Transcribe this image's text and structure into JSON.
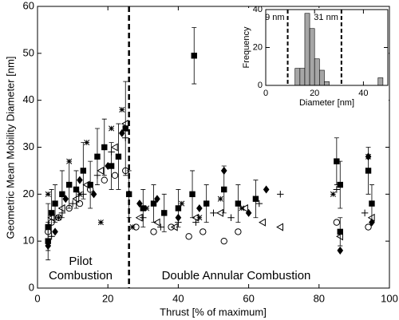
{
  "chart_data": [
    {
      "type": "scatter",
      "x_label": "Thrust [% of maximum]",
      "y_label": "Geometric Mean Mobility Diameter [nm]",
      "annotations": [
        "Pilot",
        "Combustion",
        "Double Annular Combustion"
      ],
      "divider": 26,
      "xlim": [
        0,
        100
      ],
      "ylim": [
        0,
        60
      ],
      "xticks": [
        0,
        20,
        40,
        60,
        80,
        100
      ],
      "yticks": [
        0,
        10,
        20,
        30,
        40,
        50,
        60
      ],
      "series": [
        {
          "marker": "square",
          "color": "#000000",
          "x": [
            3,
            3,
            4,
            5,
            7,
            9,
            11,
            13,
            15,
            17,
            19,
            21,
            23,
            25,
            26,
            30,
            33,
            36,
            40,
            44,
            44.5,
            48,
            53,
            57,
            62,
            85,
            86,
            86,
            94,
            95
          ],
          "values": [
            10,
            13,
            16,
            18,
            20,
            22,
            21,
            25,
            22,
            28,
            30,
            26,
            28,
            34,
            20,
            17,
            18,
            16,
            17,
            20,
            49.5,
            18,
            21,
            18,
            19,
            27,
            22,
            12,
            25,
            18
          ],
          "errors": [
            4,
            5,
            5,
            4,
            5,
            5,
            4,
            6,
            5,
            6,
            6,
            5,
            7,
            10,
            5,
            4,
            4,
            4,
            4,
            5,
            6,
            4,
            5,
            4,
            4,
            5,
            5,
            3,
            5,
            4
          ]
        },
        {
          "marker": "circle",
          "color": "#000000",
          "x": [
            3,
            4,
            6,
            9,
            12,
            15,
            19,
            22,
            25,
            28,
            33,
            38,
            43,
            47,
            53,
            57,
            85,
            94
          ],
          "values": [
            12,
            14,
            15,
            17,
            18,
            21,
            23,
            24,
            25,
            13,
            12,
            13,
            11,
            12,
            10,
            12,
            14,
            13
          ]
        },
        {
          "marker": "triangle",
          "color": "#000000",
          "x": [
            4,
            7,
            11,
            14,
            18,
            22,
            25,
            29,
            34,
            39,
            45,
            52,
            59,
            64,
            69,
            86,
            95
          ],
          "values": [
            15,
            17,
            19,
            22,
            25,
            30,
            35,
            15,
            14,
            13,
            15,
            16,
            17,
            14,
            13,
            11,
            15
          ]
        },
        {
          "marker": "asterisk",
          "color": "#000000",
          "x": [
            3,
            6,
            9,
            12,
            14,
            18,
            21,
            24,
            27,
            31,
            36,
            41,
            46,
            52,
            58,
            84,
            94
          ],
          "values": [
            20,
            15,
            27,
            20,
            31,
            14,
            34,
            38,
            13,
            17,
            16,
            18,
            15,
            19,
            17,
            20,
            28
          ]
        },
        {
          "marker": "diamond",
          "color": "#000000",
          "x": [
            3,
            5,
            8,
            12,
            16,
            20,
            24,
            29,
            34,
            40,
            46,
            53,
            60,
            65,
            86,
            94,
            95
          ],
          "values": [
            9,
            12,
            19,
            23,
            20,
            26,
            33,
            18,
            19,
            15,
            17,
            25,
            16,
            21,
            8,
            28,
            14
          ]
        },
        {
          "marker": "plus",
          "color": "#000000",
          "x": [
            4,
            7,
            10,
            13,
            17,
            21,
            25,
            30,
            35,
            40,
            45,
            50,
            55,
            63,
            69,
            85,
            93
          ],
          "values": [
            11,
            16,
            18,
            20,
            24,
            29,
            32,
            15,
            13,
            14,
            14,
            16,
            15,
            18,
            20,
            21,
            16
          ]
        }
      ]
    },
    {
      "type": "histogram",
      "x_label": "Diameter [nm]",
      "y_label": "Frequency",
      "color": "#a6a6a6",
      "bins": [
        12,
        14,
        16,
        18,
        20,
        22,
        24,
        26,
        28,
        30,
        32,
        34,
        36,
        38,
        40,
        42,
        44,
        46,
        48
      ],
      "values": [
        9,
        9,
        38,
        30,
        14,
        8,
        2,
        0,
        0,
        0,
        0,
        0,
        0,
        0,
        0,
        0,
        0,
        4
      ],
      "markers": [
        {
          "value": 9,
          "label": "9 nm"
        },
        {
          "value": 31,
          "label": "31 nm"
        }
      ],
      "xlim": [
        0,
        50
      ],
      "ylim": [
        0,
        40
      ],
      "xticks": [
        0,
        20,
        40
      ],
      "yticks": [
        0,
        20,
        40
      ]
    }
  ]
}
